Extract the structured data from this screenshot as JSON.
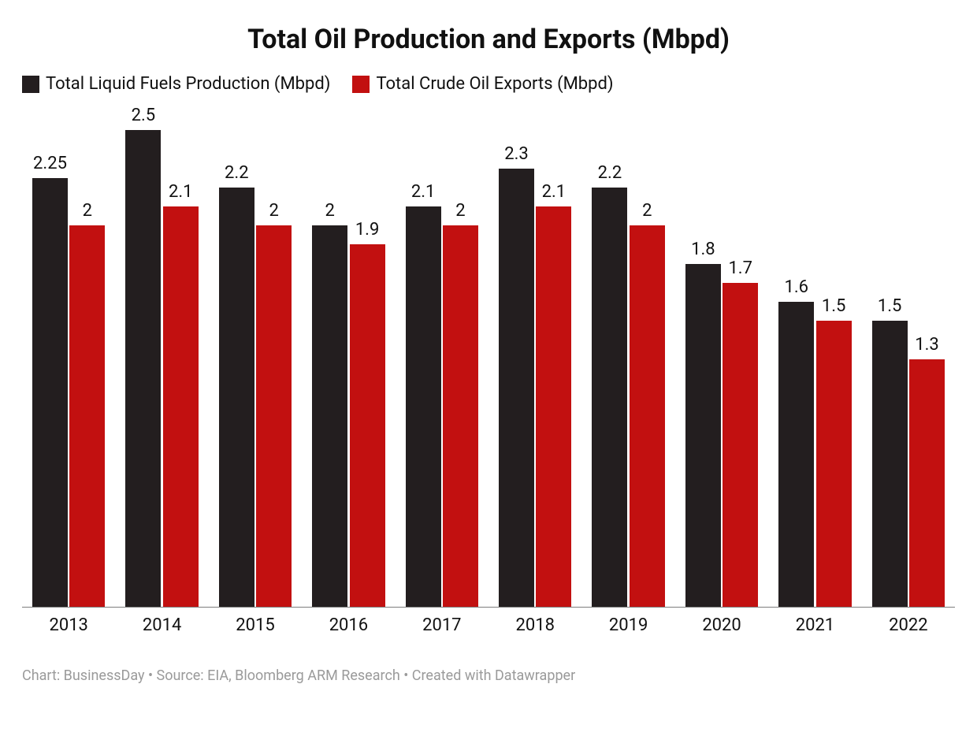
{
  "chart": {
    "type": "bar",
    "title": "Total Oil Production and Exports (Mbpd)",
    "title_fontsize": 34,
    "title_fontweight": "700",
    "title_color": "#111111",
    "background_color": "#ffffff",
    "value_label_fontsize": 22,
    "value_label_color": "#111111",
    "x_label_fontsize": 22,
    "x_label_color": "#111111",
    "axis_line_color": "#7d7d7d",
    "y_max": 2.65,
    "bar_width_pct": 38,
    "bar_gap_pct": 2,
    "categories": [
      "2013",
      "2014",
      "2015",
      "2016",
      "2017",
      "2018",
      "2019",
      "2020",
      "2021",
      "2022"
    ],
    "series": [
      {
        "name": "Total Liquid Fuels Production (Mbpd)",
        "color": "#231e1f",
        "values": [
          2.25,
          2.5,
          2.2,
          2.0,
          2.1,
          2.3,
          2.2,
          1.8,
          1.6,
          1.5
        ],
        "labels": [
          "2.25",
          "2.5",
          "2.2",
          "2",
          "2.1",
          "2.3",
          "2.2",
          "1.8",
          "1.6",
          "1.5"
        ]
      },
      {
        "name": "Total Crude Oil Exports (Mbpd)",
        "color": "#c21010",
        "values": [
          2.0,
          2.1,
          2.0,
          1.9,
          2.0,
          2.1,
          2.0,
          1.7,
          1.5,
          1.3
        ],
        "labels": [
          "2",
          "2.1",
          "2",
          "1.9",
          "2",
          "2.1",
          "2",
          "1.7",
          "1.5",
          "1.3"
        ]
      }
    ],
    "legend": {
      "fontsize": 22,
      "swatch_size": 22,
      "text_color": "#111111"
    },
    "footer": {
      "text": "Chart: BusinessDay • Source: EIA, Bloomberg ARM Research  • Created with Datawrapper",
      "fontsize": 18,
      "color": "#9a9a9a"
    }
  }
}
